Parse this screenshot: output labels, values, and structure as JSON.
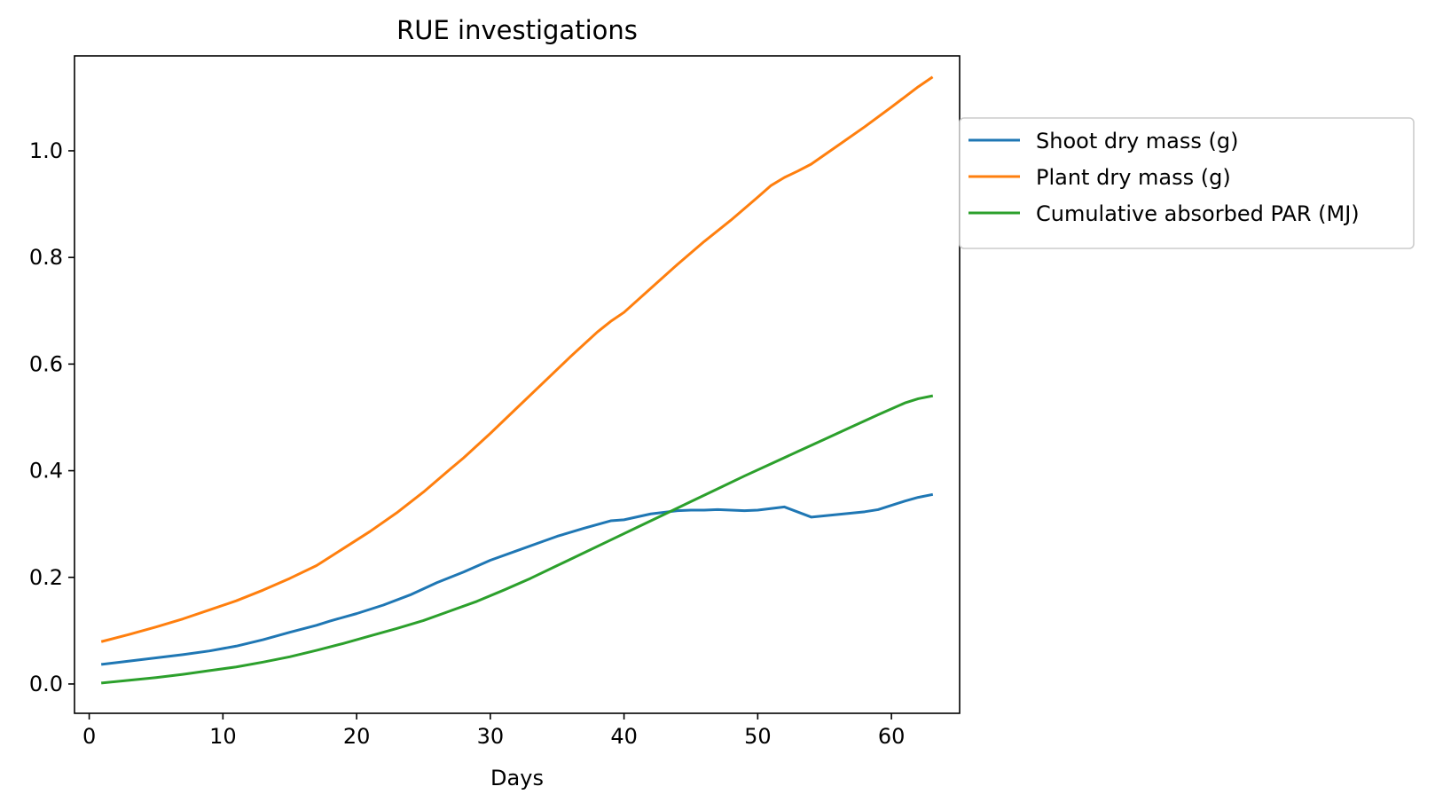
{
  "chart_data": {
    "type": "line",
    "title": "RUE investigations",
    "xlabel": "Days",
    "ylabel": "",
    "xlim": [
      -1.1,
      65.1
    ],
    "ylim": [
      -0.055,
      1.178
    ],
    "xticks": [
      0,
      10,
      20,
      30,
      40,
      50,
      60
    ],
    "yticks": [
      0.0,
      0.2,
      0.4,
      0.6,
      0.8,
      1.0
    ],
    "xtick_labels": [
      "0",
      "10",
      "20",
      "30",
      "40",
      "50",
      "60"
    ],
    "ytick_labels": [
      "0.0",
      "0.2",
      "0.4",
      "0.6",
      "0.8",
      "1.0"
    ],
    "grid": false,
    "legend_position": "outside-right-top",
    "series": [
      {
        "name": "Shoot dry mass (g)",
        "color": "#1f77b4",
        "x": [
          1,
          3,
          5,
          7,
          9,
          11,
          13,
          15,
          17,
          18,
          20,
          22,
          24,
          26,
          27,
          28,
          30,
          32,
          34,
          35,
          37,
          39,
          40,
          42,
          44,
          45,
          46,
          47,
          49,
          50,
          52,
          54,
          56,
          58,
          59,
          61,
          62,
          63
        ],
        "y": [
          0.037,
          0.043,
          0.049,
          0.055,
          0.062,
          0.071,
          0.083,
          0.097,
          0.11,
          0.118,
          0.132,
          0.148,
          0.167,
          0.19,
          0.2,
          0.21,
          0.232,
          0.25,
          0.268,
          0.277,
          0.292,
          0.306,
          0.308,
          0.319,
          0.325,
          0.326,
          0.326,
          0.327,
          0.325,
          0.326,
          0.332,
          0.313,
          0.318,
          0.323,
          0.327,
          0.343,
          0.35,
          0.355
        ]
      },
      {
        "name": "Plant dry mass (g)",
        "color": "#ff7f0e",
        "x": [
          1,
          3,
          5,
          7,
          9,
          11,
          13,
          15,
          17,
          19,
          21,
          23,
          25,
          27,
          28,
          30,
          32,
          34,
          36,
          38,
          39,
          40,
          42,
          44,
          46,
          48,
          50,
          51,
          52,
          53,
          54,
          56,
          58,
          60,
          62,
          63
        ],
        "y": [
          0.08,
          0.093,
          0.107,
          0.122,
          0.139,
          0.156,
          0.176,
          0.198,
          0.222,
          0.254,
          0.286,
          0.321,
          0.36,
          0.403,
          0.424,
          0.47,
          0.518,
          0.566,
          0.614,
          0.66,
          0.68,
          0.697,
          0.742,
          0.787,
          0.83,
          0.87,
          0.913,
          0.935,
          0.95,
          0.962,
          0.975,
          1.01,
          1.045,
          1.082,
          1.12,
          1.137
        ]
      },
      {
        "name": "Cumulative absorbed PAR (MJ)",
        "color": "#2ca02c",
        "x": [
          1,
          3,
          5,
          7,
          9,
          11,
          13,
          15,
          17,
          19,
          21,
          23,
          25,
          27,
          29,
          31,
          33,
          35,
          37,
          39,
          41,
          43,
          45,
          47,
          49,
          51,
          53,
          55,
          57,
          59,
          61,
          62,
          63
        ],
        "y": [
          0.002,
          0.007,
          0.012,
          0.018,
          0.025,
          0.032,
          0.041,
          0.051,
          0.063,
          0.076,
          0.09,
          0.104,
          0.119,
          0.137,
          0.155,
          0.176,
          0.198,
          0.222,
          0.246,
          0.27,
          0.294,
          0.318,
          0.342,
          0.366,
          0.39,
          0.413,
          0.436,
          0.459,
          0.482,
          0.505,
          0.527,
          0.535,
          0.54
        ]
      }
    ]
  }
}
